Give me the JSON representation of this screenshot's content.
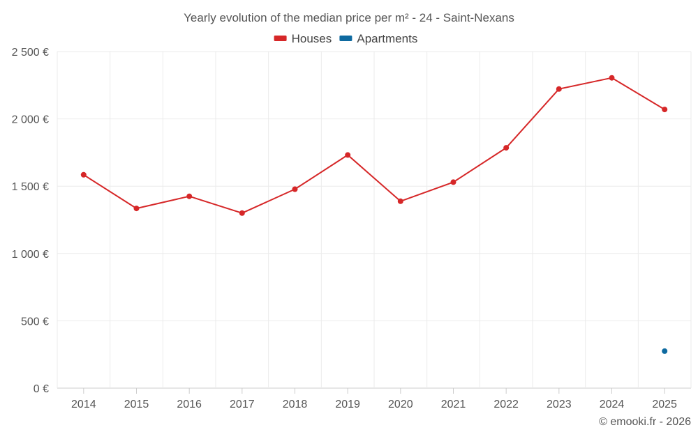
{
  "chart_data": {
    "type": "line",
    "title": "Yearly evolution of the median price per m² - 24 - Saint-Nexans",
    "categories": [
      "2014",
      "2015",
      "2016",
      "2017",
      "2018",
      "2019",
      "2020",
      "2021",
      "2022",
      "2023",
      "2024",
      "2025"
    ],
    "ylim": [
      0,
      2500
    ],
    "yticks": [
      0,
      500,
      1000,
      1500,
      2000,
      2500
    ],
    "ytick_labels": [
      "0 €",
      "500 €",
      "1 000 €",
      "1 500 €",
      "2 000 €",
      "2 500 €"
    ],
    "xlabel": "",
    "ylabel": "",
    "grid": true,
    "legend_position": "top-center",
    "series": [
      {
        "name": "Houses",
        "color": "#d62728",
        "values": [
          1585,
          1335,
          1425,
          1300,
          1478,
          1732,
          1388,
          1530,
          1785,
          2222,
          2305,
          2070
        ]
      },
      {
        "name": "Apartments",
        "color": "#0e6aa0",
        "values": [
          null,
          null,
          null,
          null,
          null,
          null,
          null,
          null,
          null,
          null,
          null,
          275
        ]
      }
    ]
  },
  "credit": "© emooki.fr - 2026"
}
